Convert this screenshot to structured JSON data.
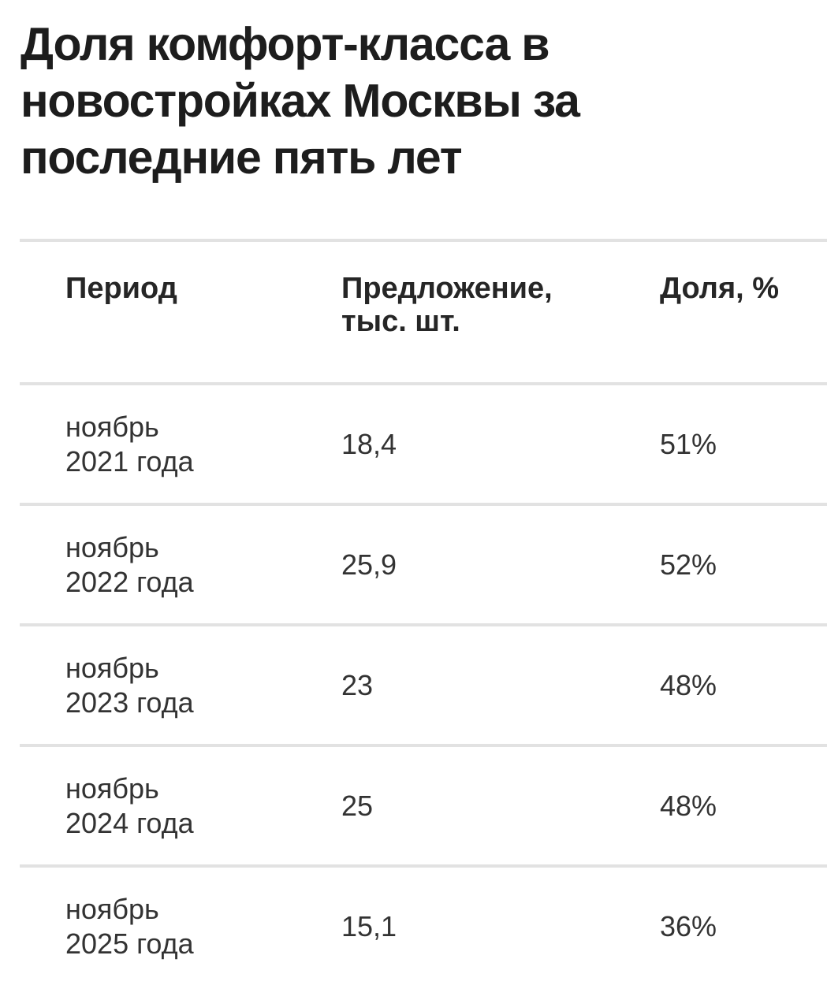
{
  "page": {
    "background": "#ffffff",
    "divider_color": "#e2e2e2",
    "title_color": "#1d1d1d",
    "text_color": "#333333"
  },
  "title": {
    "full": "Доля комфорт-класса в новостройках Москвы за последние пять лет",
    "lines": [
      "Доля комфорт-класса в",
      "новостройках Москвы за",
      "последние пять лет"
    ]
  },
  "table": {
    "header": {
      "period": "Период",
      "supply_line1": "Предложение,",
      "supply_line2": "тыс. шт.",
      "share": "Доля, %"
    },
    "rows": [
      {
        "period_line1": "ноябрь",
        "period_line2": "2021 года",
        "supply": "18,4",
        "share": "51%"
      },
      {
        "period_line1": "ноябрь",
        "period_line2": "2022 года",
        "supply": "25,9",
        "share": "52%"
      },
      {
        "period_line1": "ноябрь",
        "period_line2": "2023 года",
        "supply": "23",
        "share": "48%"
      },
      {
        "period_line1": "ноябрь",
        "period_line2": "2024 года",
        "supply": "25",
        "share": "48%"
      },
      {
        "period_line1": "ноябрь",
        "period_line2": "2025 года",
        "supply": "15,1",
        "share": "36%"
      }
    ]
  },
  "chart_data": {
    "type": "table",
    "title": "Доля комфорт-класса в новостройках Москвы за последние пять лет",
    "columns": [
      "Период",
      "Предложение, тыс. шт.",
      "Доля, %"
    ],
    "rows": [
      [
        "ноябрь 2021 года",
        "18,4",
        "51%"
      ],
      [
        "ноябрь 2022 года",
        "25,9",
        "52%"
      ],
      [
        "ноябрь 2023 года",
        "23",
        "48%"
      ],
      [
        "ноябрь 2024 года",
        "25",
        "48%"
      ],
      [
        "ноябрь 2025 года",
        "15,1",
        "36%"
      ]
    ],
    "numeric": {
      "categories": [
        "ноябрь 2021 года",
        "ноябрь 2022 года",
        "ноябрь 2023 года",
        "ноябрь 2024 года",
        "ноябрь 2025 года"
      ],
      "supply_thousand_units": [
        18.4,
        25.9,
        23,
        25,
        15.1
      ],
      "share_percent": [
        51,
        52,
        48,
        48,
        36
      ]
    }
  }
}
